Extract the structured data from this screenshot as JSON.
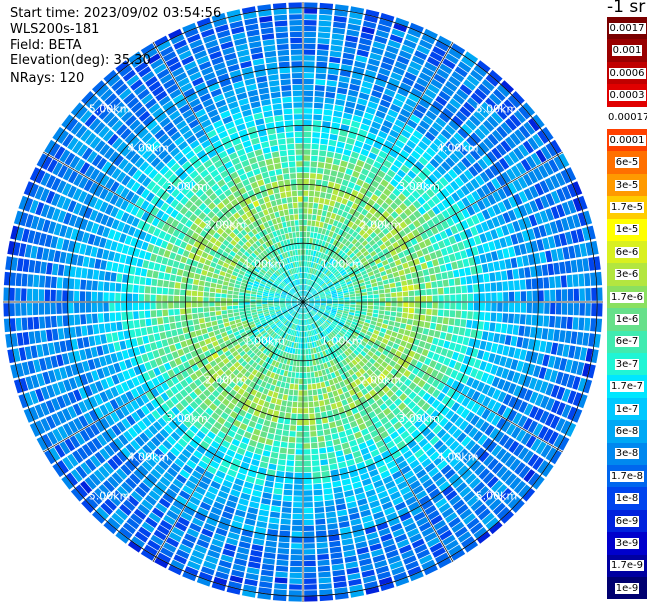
{
  "header": {
    "start_time": "Start time: 2023/09/02 03:54:56",
    "site": "WLS200s-181",
    "field": "Field: BETA",
    "elevation": "Elevation(deg): 35.30",
    "nrays": "NRays: 120"
  },
  "units_label": "-1 sr",
  "chart_data": {
    "type": "heatmap",
    "projection": "polar PPI",
    "n_rays": 120,
    "range_rings_km": [
      1.0,
      2.0,
      3.0,
      4.0,
      5.0
    ],
    "range_ring_labels": [
      "1.00km",
      "2.00km",
      "3.00km",
      "4.00km",
      "5.00km"
    ],
    "max_range_km": 5.1,
    "grid": true,
    "spokes_deg": [
      0,
      30,
      60,
      90,
      120,
      150,
      180,
      210,
      240,
      270,
      300,
      330
    ],
    "color_scale": "log",
    "colorbar": {
      "placement": "right",
      "levels": [
        {
          "label": "0.0017",
          "color": "#7a0000"
        },
        {
          "label": "0.001",
          "color": "#990000"
        },
        {
          "label": "0.0006",
          "color": "#c00000"
        },
        {
          "label": "0.0003",
          "color": "#e00000"
        },
        {
          "label": "0.00017",
          "color": "#ffffff"
        },
        {
          "label": "0.0001",
          "color": "#ff4000"
        },
        {
          "label": "6e-5",
          "color": "#ff7000"
        },
        {
          "label": "3e-5",
          "color": "#ff9a00"
        },
        {
          "label": "1.7e-5",
          "color": "#ffcc00"
        },
        {
          "label": "1e-5",
          "color": "#ffff00"
        },
        {
          "label": "6e-6",
          "color": "#d9f020"
        },
        {
          "label": "3e-6",
          "color": "#b3e640"
        },
        {
          "label": "1.7e-6",
          "color": "#8ae060"
        },
        {
          "label": "1e-6",
          "color": "#66e08a"
        },
        {
          "label": "6e-7",
          "color": "#40ebb0"
        },
        {
          "label": "3e-7",
          "color": "#20f5d5"
        },
        {
          "label": "1.7e-7",
          "color": "#00e6ff"
        },
        {
          "label": "1e-7",
          "color": "#00c8ff"
        },
        {
          "label": "6e-8",
          "color": "#00a8f5"
        },
        {
          "label": "3e-8",
          "color": "#0088ef"
        },
        {
          "label": "1.7e-8",
          "color": "#0066ee"
        },
        {
          "label": "1e-8",
          "color": "#0044ee"
        },
        {
          "label": "6e-9",
          "color": "#0022dd"
        },
        {
          "label": "3e-9",
          "color": "#0000cc"
        },
        {
          "label": "1.7e-9",
          "color": "#0000a0"
        },
        {
          "label": "1e-9",
          "color": "#000070"
        }
      ]
    },
    "range_profile": [
      {
        "range_km": 0.0,
        "value": "1.7e-7"
      },
      {
        "range_km": 1.0,
        "value": "6e-7"
      },
      {
        "range_km": 1.8,
        "value": "1.7e-6"
      },
      {
        "range_km": 2.5,
        "value": "6e-7"
      },
      {
        "range_km": 3.0,
        "value": "1.7e-7"
      },
      {
        "range_km": 3.5,
        "value": "6e-8"
      },
      {
        "range_km": 4.2,
        "value": "3e-8"
      },
      {
        "range_km": 5.1,
        "value": "1.7e-8"
      }
    ]
  }
}
